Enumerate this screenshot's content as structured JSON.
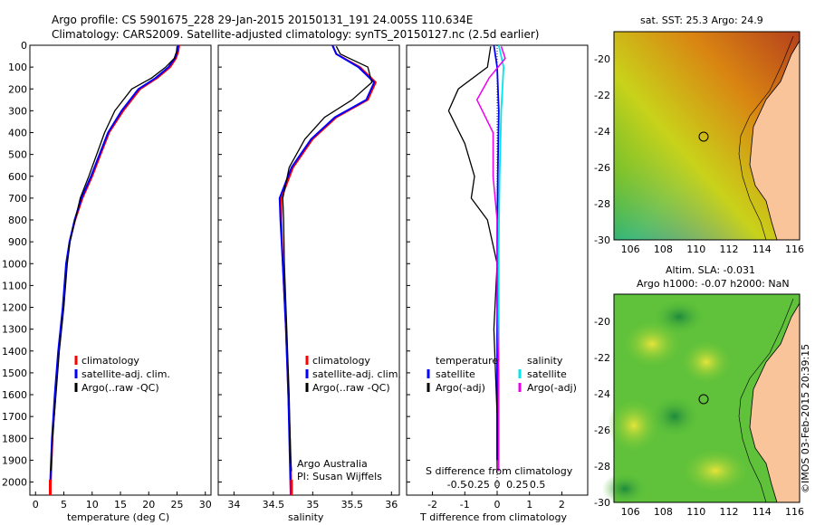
{
  "header": {
    "line1": "Argo profile: CS 5901675_228 29-Jan-2015 20150131_191 24.005S 110.634E",
    "line2": "Climatology: CARS2009. Satellite-adjusted climatology: synTS_20150127.nc (2.5d earlier)"
  },
  "colors": {
    "climatology": "#ff0000",
    "satellite": "#0000ff",
    "argo": "#000000",
    "satellite_s": "#00e5ee",
    "argo_s": "#ee00ee",
    "land": "#f9c49a"
  },
  "chart_data": [
    {
      "type": "line",
      "xlabel": "temperature (deg C)",
      "ylabel": "",
      "xlim": [
        -1,
        31
      ],
      "ylim": [
        2060,
        0
      ],
      "x_ticks": [
        "0",
        "5",
        "10",
        "15",
        "20",
        "25",
        "30"
      ],
      "y_ticks": [
        "0",
        "100",
        "200",
        "300",
        "400",
        "500",
        "600",
        "700",
        "800",
        "900",
        "1000",
        "1100",
        "1200",
        "1300",
        "1400",
        "1500",
        "1600",
        "1700",
        "1800",
        "1900",
        "2000"
      ],
      "legend": [
        "climatology",
        "satellite-adj. clim.",
        "Argo(..raw -QC)"
      ],
      "series": [
        {
          "name": "climatology",
          "points": [
            [
              25.4,
              0
            ],
            [
              25.2,
              30
            ],
            [
              24.8,
              60
            ],
            [
              23.8,
              100
            ],
            [
              21.5,
              150
            ],
            [
              18.5,
              200
            ],
            [
              15.5,
              300
            ],
            [
              13,
              400
            ],
            [
              11.5,
              500
            ],
            [
              10,
              600
            ],
            [
              8.3,
              700
            ],
            [
              7,
              800
            ],
            [
              6,
              900
            ],
            [
              5.5,
              1000
            ],
            [
              4.9,
              1200
            ],
            [
              4.1,
              1400
            ],
            [
              3.5,
              1600
            ],
            [
              3.0,
              1800
            ],
            [
              2.7,
              2000
            ],
            [
              2.6,
              2060
            ]
          ]
        },
        {
          "name": "satellite-adj. clim.",
          "points": [
            [
              25.2,
              0
            ],
            [
              25.0,
              30
            ],
            [
              24.6,
              60
            ],
            [
              23.5,
              100
            ],
            [
              21.2,
              150
            ],
            [
              18.2,
              200
            ],
            [
              15.2,
              300
            ],
            [
              12.8,
              400
            ],
            [
              11.3,
              500
            ],
            [
              9.8,
              600
            ],
            [
              8.1,
              700
            ],
            [
              6.9,
              800
            ],
            [
              6.0,
              900
            ],
            [
              5.4,
              1000
            ],
            [
              4.8,
              1200
            ],
            [
              4.0,
              1400
            ],
            [
              3.4,
              1600
            ],
            [
              2.9,
              1800
            ],
            [
              2.6,
              2000
            ],
            [
              2.5,
              2060
            ]
          ]
        },
        {
          "name": "Argo(..raw -QC)",
          "points": [
            [
              25.0,
              5
            ],
            [
              24.9,
              30
            ],
            [
              24.5,
              60
            ],
            [
              23.0,
              100
            ],
            [
              20.5,
              150
            ],
            [
              17.0,
              200
            ],
            [
              14.0,
              300
            ],
            [
              12.2,
              400
            ],
            [
              10.8,
              500
            ],
            [
              9.4,
              600
            ],
            [
              7.9,
              700
            ],
            [
              7.0,
              800
            ],
            [
              6.1,
              900
            ],
            [
              5.6,
              1000
            ],
            [
              5.0,
              1200
            ],
            [
              4.2,
              1400
            ],
            [
              3.6,
              1600
            ],
            [
              3.0,
              1800
            ],
            [
              2.7,
              1950
            ]
          ]
        }
      ]
    },
    {
      "type": "line",
      "xlabel": "salinity",
      "xlim": [
        33.8,
        36.1
      ],
      "ylim": [
        2060,
        0
      ],
      "x_ticks": [
        "34",
        "34.5",
        "35",
        "35.5",
        "36"
      ],
      "legend": [
        "climatology",
        "satellite-adj. clim.",
        "Argo(..raw -QC)"
      ],
      "annotations": [
        "Argo Australia",
        "PI: Susan Wijffels"
      ],
      "series": [
        {
          "name": "climatology",
          "points": [
            [
              35.25,
              0
            ],
            [
              35.3,
              40
            ],
            [
              35.6,
              100
            ],
            [
              35.8,
              170
            ],
            [
              35.7,
              250
            ],
            [
              35.3,
              330
            ],
            [
              35.0,
              430
            ],
            [
              34.75,
              560
            ],
            [
              34.6,
              700
            ],
            [
              34.6,
              800
            ],
            [
              34.62,
              1000
            ],
            [
              34.66,
              1300
            ],
            [
              34.69,
              1600
            ],
            [
              34.72,
              1900
            ],
            [
              34.73,
              2060
            ]
          ]
        },
        {
          "name": "satellite-adj. clim.",
          "points": [
            [
              35.25,
              0
            ],
            [
              35.3,
              40
            ],
            [
              35.58,
              100
            ],
            [
              35.78,
              170
            ],
            [
              35.68,
              250
            ],
            [
              35.28,
              330
            ],
            [
              34.98,
              430
            ],
            [
              34.73,
              560
            ],
            [
              34.58,
              700
            ],
            [
              34.59,
              800
            ],
            [
              34.62,
              1000
            ],
            [
              34.66,
              1300
            ],
            [
              34.69,
              1600
            ],
            [
              34.71,
              1900
            ],
            [
              34.72,
              2060
            ]
          ]
        },
        {
          "name": "Argo(..raw -QC)",
          "points": [
            [
              35.3,
              5
            ],
            [
              35.35,
              40
            ],
            [
              35.7,
              100
            ],
            [
              35.75,
              170
            ],
            [
              35.5,
              250
            ],
            [
              35.15,
              330
            ],
            [
              34.9,
              430
            ],
            [
              34.7,
              560
            ],
            [
              34.62,
              700
            ],
            [
              34.63,
              800
            ],
            [
              34.64,
              1000
            ],
            [
              34.67,
              1300
            ],
            [
              34.7,
              1600
            ],
            [
              34.72,
              1900
            ],
            [
              34.73,
              1950
            ]
          ]
        }
      ]
    },
    {
      "type": "line",
      "xlabel": "T difference from climatology",
      "top_label": "S difference from climatology",
      "xlim": [
        -2.8,
        2.8
      ],
      "ylim": [
        2060,
        0
      ],
      "x_ticks": [
        "-2",
        "-1",
        "0",
        "1",
        "2"
      ],
      "s_ticks": [
        "-0.5",
        "-0.25",
        "0",
        "0.25",
        "0.5"
      ],
      "legend_left_title": "temperature",
      "legend_right_title": "salinity",
      "legend_left": [
        "satellite",
        "Argo(-adj)"
      ],
      "legend_right": [
        "satellite",
        "Argo(-adj)"
      ],
      "series": [
        {
          "name": "T satellite",
          "points": [
            [
              -0.1,
              0
            ],
            [
              0,
              100
            ],
            [
              0.05,
              300
            ],
            [
              0.02,
              600
            ],
            [
              0,
              900
            ],
            [
              0,
              1200
            ],
            [
              0,
              1900
            ]
          ]
        },
        {
          "name": "T Argo(-adj)",
          "points": [
            [
              -0.2,
              5
            ],
            [
              -0.3,
              100
            ],
            [
              -1.2,
              200
            ],
            [
              -1.5,
              300
            ],
            [
              -1.0,
              450
            ],
            [
              -0.7,
              600
            ],
            [
              -0.8,
              700
            ],
            [
              -0.3,
              800
            ],
            [
              0,
              1000
            ],
            [
              -0.1,
              1300
            ],
            [
              0,
              1700
            ],
            [
              0,
              1950
            ]
          ]
        },
        {
          "name": "S satellite",
          "points": [
            [
              0.02,
              0
            ],
            [
              0.08,
              100
            ],
            [
              0.05,
              300
            ],
            [
              0.03,
              600
            ],
            [
              0.02,
              900
            ],
            [
              0.02,
              1200
            ],
            [
              0.02,
              1450
            ]
          ]
        },
        {
          "name": "S Argo(-adj)",
          "points": [
            [
              0.05,
              5
            ],
            [
              0.1,
              60
            ],
            [
              -0.1,
              150
            ],
            [
              -0.25,
              250
            ],
            [
              -0.05,
              400
            ],
            [
              -0.05,
              600
            ],
            [
              0,
              800
            ],
            [
              0,
              1200
            ],
            [
              0.02,
              1500
            ],
            [
              0.02,
              1950
            ]
          ]
        }
      ]
    },
    {
      "type": "heatmap",
      "title": "sat. SST: 25.3 Argo: 24.9",
      "xlim": [
        105,
        116.3
      ],
      "ylim": [
        -30,
        -18.5
      ],
      "x_ticks": [
        "106",
        "108",
        "110",
        "112",
        "114",
        "116"
      ],
      "y_ticks": [
        "-20",
        "-22",
        "-24",
        "-26",
        "-28",
        "-30"
      ],
      "marker": {
        "lon": 110.634,
        "lat": -24.005
      }
    },
    {
      "type": "heatmap",
      "title": "Altim. SLA: -0.031",
      "subtitle": "Argo h1000: -0.07 h2000: NaN",
      "xlim": [
        105,
        116.3
      ],
      "ylim": [
        -30,
        -18.5
      ],
      "x_ticks": [
        "106",
        "108",
        "110",
        "112",
        "114",
        "116"
      ],
      "y_ticks": [
        "-20",
        "-22",
        "-24",
        "-26",
        "-28",
        "-30"
      ],
      "marker": {
        "lon": 110.634,
        "lat": -24.005
      }
    }
  ],
  "credit": "©IMOS 03-Feb-2015 20:39:15"
}
